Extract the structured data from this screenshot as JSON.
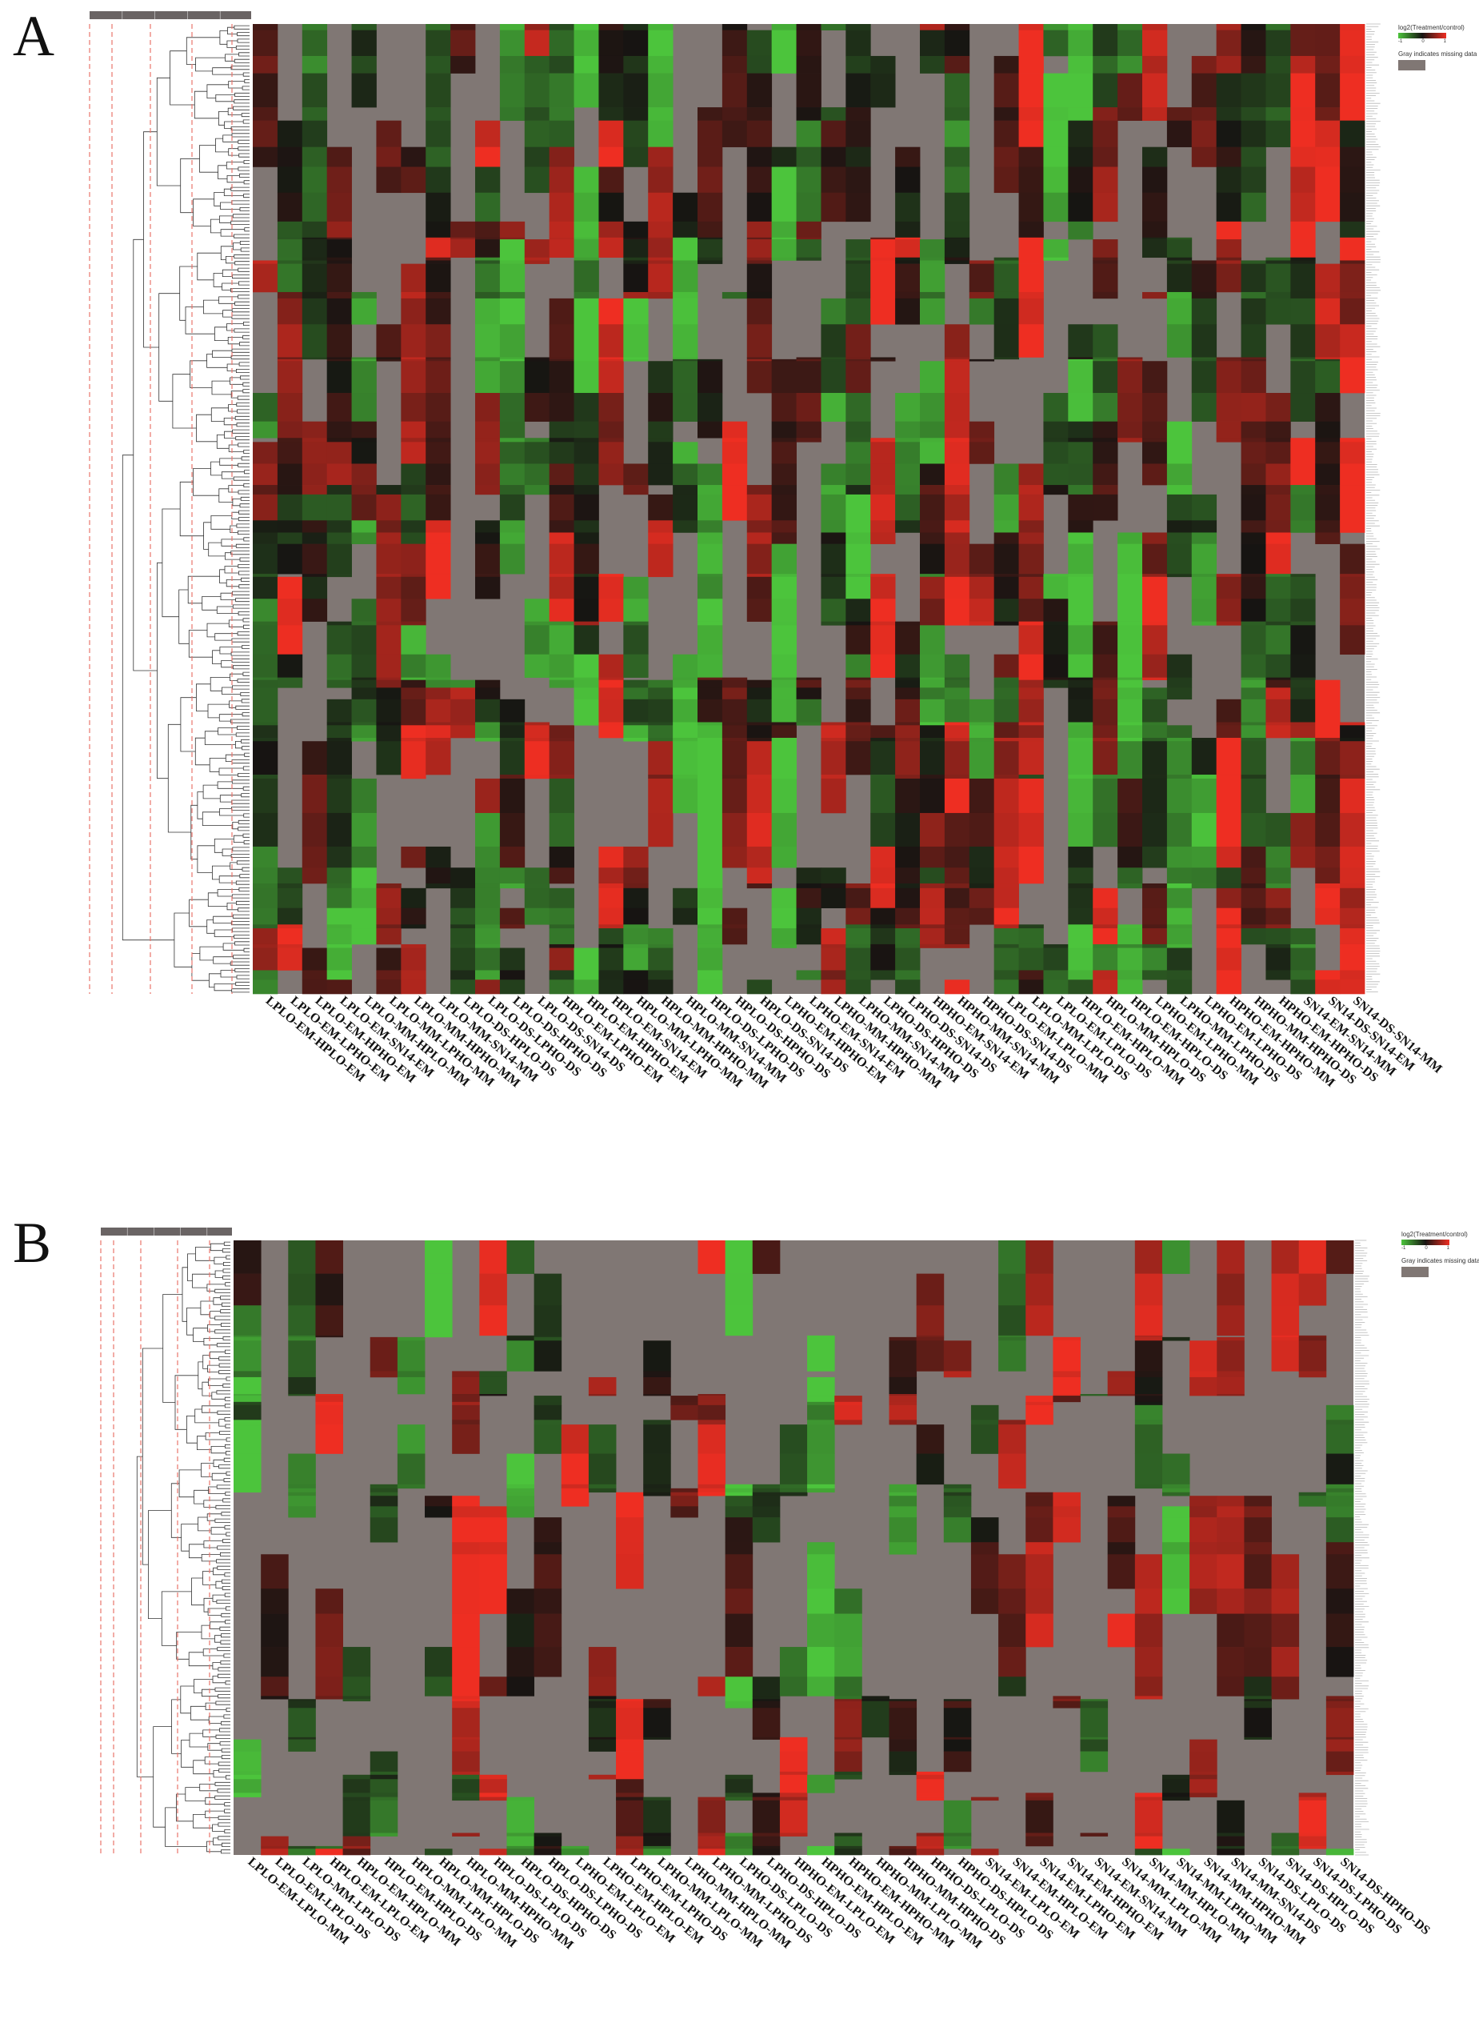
{
  "panels": [
    {
      "letter": "A",
      "legend_title": "log2(Treatment/control)",
      "legend_ticks": [
        "-1",
        "0",
        "1"
      ],
      "missing_label": "Gray indicates missing data",
      "columns": [
        "LPLO-EM-HPLO-EM",
        "LPLO-EM-LPHO-EM",
        "LPLO-EM-HPHO-EM",
        "LPLO-EM-SN14-EM",
        "LPLO-MM-HPLO-MM",
        "LPLO-MM-LPHO-MM",
        "LPLO-MM-HPHO-MM",
        "LPLO-MM-SN14-MM",
        "LPLO-DS-HPLO-DS",
        "LPLO-DS-LPHO-DS",
        "LPLO-DS-HPHO-DS",
        "LPLO-DS-SN14-DS",
        "HPLO-EM-LPHO-EM",
        "HPLO-EM-HPHO-EM",
        "HPLO-EM-SN14-EM",
        "HPLO-MM-LPHO-MM",
        "HPLO-MM-HPHO-MM",
        "HPLO-MM-SN14-MM",
        "HPLO-DS-LPHO-DS",
        "HPLO-DS-HPHO-DS",
        "HPLO-DS-SN14-DS",
        "LPHO-EM-HPHO-EM",
        "LPHO-EM-SN14-EM",
        "LPHO-MM-HPHO-MM",
        "LPHO-MM-SN14-MM",
        "LPHO-DS-HPHO-DS",
        "LPHO-DS-SN14-DS",
        "HPHO-EM-SN14-EM",
        "HPHO-MM-SN14-MM",
        "HPHO-DS-SN14-DS",
        "LPLO-EM-LPLO-MM",
        "LPLO-MM-LPLO-DS",
        "LPLO-EM-LPLO-DS",
        "HPLO-EM-HPLO-MM",
        "HPLO-MM-HPLO-DS",
        "HPLO-EM-HPLO-DS",
        "LPHO-EM-LPHO-MM",
        "LPHO-MM-LPHO-DS",
        "LPHO-EM-LPHO-DS",
        "HPHO-EM-HPHO-MM",
        "HPHO-MM-HPHO-DS",
        "HPHO-EM-HPHO-DS",
        "SN14-EM-SN14-MM",
        "SN14-DS-SN14-EM",
        "SN14-DS-SN14-MM"
      ]
    },
    {
      "letter": "B",
      "legend_title": "log2(Treatment/control)",
      "legend_ticks": [
        "-1",
        "0",
        "1"
      ],
      "missing_label": "Gray indicates missing data",
      "columns": [
        "LPLO-EM-LPLO-MM",
        "LPLO-EM-LPLO-DS",
        "LPLO-MM-LPLO-DS",
        "HPLO-EM-LPLO-EM",
        "HPLO-EM-HPLO-MM",
        "HPLO-EM-HPLO-DS",
        "HPLO-MM-LPLO-MM",
        "HPLO-MM-HPLO-DS",
        "HPLO-MM-HPHO-MM",
        "HPLO-DS-LPLO-DS",
        "HPLO-DS-HPHO-DS",
        "HPLO-DS-LPHO-DS",
        "LPHO-EM-LPLO-EM",
        "LPHO-EM-HPLO-EM",
        "LPHO-EM-LPHO-DS",
        "LPHO-MM-LPLO-MM",
        "LPHO-MM-HPLO-MM",
        "LPHO-MM-LPHO-DS",
        "LPHO-DS-LPLO-DS",
        "LPHO-DS-HPLO-DS",
        "HPHO-EM-LPLO-EM",
        "HPHO-EM-HPLO-EM",
        "HPHO-EM-HPHO-MM",
        "HPHO-MM-LPLO-MM",
        "HPHO-MM-HPHO-DS",
        "HPHO-DS-LPLO-DS",
        "HPHO-DS-HPLO-DS",
        "SN14-EM-LPLO-EM",
        "SN14-EM-HPLO-EM",
        "SN14-EM-LPHO-EM",
        "SN14-EM-HPHO-EM",
        "SN14-EM-SN14-MM",
        "SN14-MM-LPLO-MM",
        "SN14-MM-HPLO-MM",
        "SN14-MM-LPHO-MM",
        "SN14-MM-HPHO-MM",
        "SN14-MM-SN14-DS",
        "SN14-DS-LPLO-DS",
        "SN14-DS-HPLO-DS",
        "SN14-DS-LPHO-DS",
        "SN14-DS-HPHO-DS"
      ]
    }
  ],
  "colors": {
    "missing": "#807774",
    "low": "#4cc43c",
    "mid": "#161412",
    "high": "#ee2e22",
    "cutoff_line": "#e8746c"
  },
  "chart_data": [
    {
      "type": "heatmap",
      "title": "",
      "colorbar_label": "log2(Treatment/control)",
      "colorbar_range": [
        -1,
        1
      ],
      "missing_color": "#807774",
      "num_columns": 45,
      "dendrogram": "rows"
    },
    {
      "type": "heatmap",
      "title": "",
      "colorbar_label": "log2(Treatment/control)",
      "colorbar_range": [
        -1,
        1
      ],
      "missing_color": "#807774",
      "num_columns": 41,
      "dendrogram": "rows"
    }
  ]
}
